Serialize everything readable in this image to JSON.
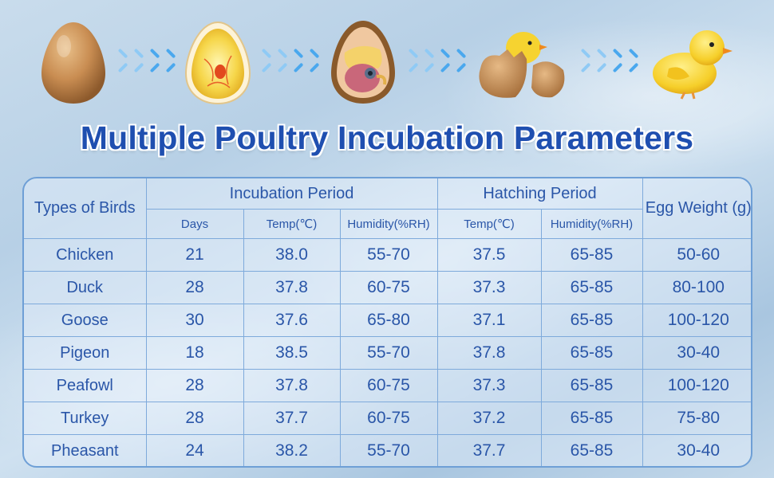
{
  "title": "Multiple Poultry Incubation Parameters",
  "stages": [
    "egg-icon",
    "early-embryo-egg-icon",
    "developed-embryo-egg-icon",
    "hatching-chick-icon",
    "chick-icon"
  ],
  "table": {
    "col_birds": "Types of Birds",
    "group_incubation": "Incubation Period",
    "group_hatching": "Hatching Period",
    "col_weight": "Egg Weight (g)",
    "sub_days": "Days",
    "sub_inc_temp": "Temp(℃)",
    "sub_inc_humidity": "Humidity(%RH)",
    "sub_hat_temp": "Temp(℃)",
    "sub_hat_humidity": "Humidity(%RH)",
    "rows": [
      {
        "bird": "Chicken",
        "days": "21",
        "inc_temp": "38.0",
        "inc_humidity": "55-70",
        "hat_temp": "37.5",
        "hat_humidity": "65-85",
        "weight": "50-60"
      },
      {
        "bird": "Duck",
        "days": "28",
        "inc_temp": "37.8",
        "inc_humidity": "60-75",
        "hat_temp": "37.3",
        "hat_humidity": "65-85",
        "weight": "80-100"
      },
      {
        "bird": "Goose",
        "days": "30",
        "inc_temp": "37.6",
        "inc_humidity": "65-80",
        "hat_temp": "37.1",
        "hat_humidity": "65-85",
        "weight": "100-120"
      },
      {
        "bird": "Pigeon",
        "days": "18",
        "inc_temp": "38.5",
        "inc_humidity": "55-70",
        "hat_temp": "37.8",
        "hat_humidity": "65-85",
        "weight": "30-40"
      },
      {
        "bird": "Peafowl",
        "days": "28",
        "inc_temp": "37.8",
        "inc_humidity": "60-75",
        "hat_temp": "37.3",
        "hat_humidity": "65-85",
        "weight": "100-120"
      },
      {
        "bird": "Turkey",
        "days": "28",
        "inc_temp": "37.7",
        "inc_humidity": "60-75",
        "hat_temp": "37.2",
        "hat_humidity": "65-85",
        "weight": "75-80"
      },
      {
        "bird": "Pheasant",
        "days": "24",
        "inc_temp": "38.2",
        "inc_humidity": "55-70",
        "hat_temp": "37.7",
        "hat_humidity": "65-85",
        "weight": "30-40"
      }
    ]
  },
  "colors": {
    "title": "#1f4fb0",
    "table_text": "#2a56a8",
    "table_border": "#7eaadb",
    "arrow": "#4aa8ee"
  }
}
